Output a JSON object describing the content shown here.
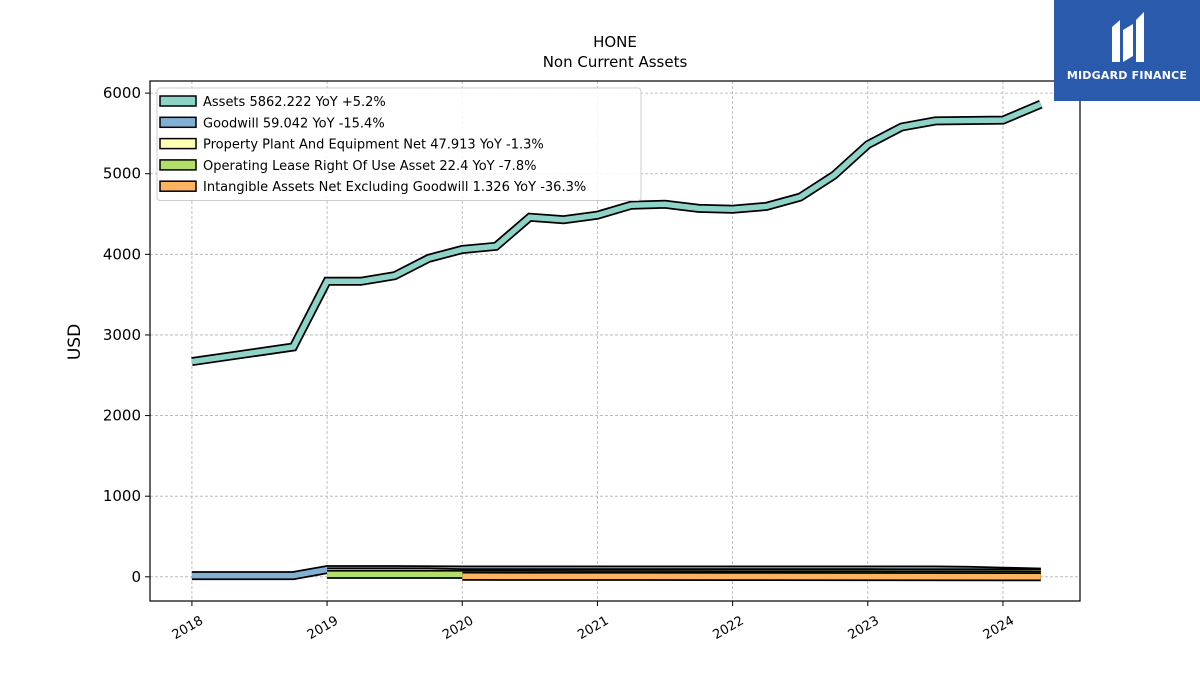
{
  "logo": {
    "text": "MIDGARD FINANCE",
    "bg_color": "#2a5aab"
  },
  "chart_data": {
    "type": "area",
    "title": "HONE",
    "subtitle": "Non Current  Assets",
    "ylabel": "USD",
    "xlabel": "",
    "ylim": [
      -300,
      6150
    ],
    "xlim": [
      2017.69,
      2024.57
    ],
    "yticks": [
      0,
      1000,
      2000,
      3000,
      4000,
      5000,
      6000
    ],
    "xticks": [
      "2018",
      "2019",
      "2020",
      "2021",
      "2022",
      "2023",
      "2024"
    ],
    "grid": true,
    "legend_position": "top-left",
    "series": [
      {
        "name": "Assets",
        "legend": "Assets  5862.222 YoY +5.2%",
        "color": "#8dd3c7",
        "x": [
          2018.0,
          2018.75,
          2019.0,
          2019.25,
          2019.5,
          2019.75,
          2020.0,
          2020.25,
          2020.5,
          2020.75,
          2021.0,
          2021.25,
          2021.5,
          2021.75,
          2022.0,
          2022.25,
          2022.5,
          2022.75,
          2023.0,
          2023.25,
          2023.5,
          2023.75,
          2024.0,
          2024.28
        ],
        "values": [
          2670,
          2850,
          3665,
          3665,
          3735,
          3950,
          4060,
          4100,
          4460,
          4430,
          4485,
          4610,
          4620,
          4570,
          4560,
          4595,
          4710,
          4980,
          5360,
          5580,
          5655,
          5660,
          5665,
          5862
        ]
      },
      {
        "name": "Goodwill",
        "legend": "Goodwill  59.042 YoY -15.4%",
        "color": "#80b1d3",
        "x": [
          2018.0,
          2018.75,
          2019.0,
          2019.5,
          2020.0,
          2020.5,
          2021.0,
          2021.5,
          2022.0,
          2022.5,
          2023.0,
          2023.5,
          2023.75,
          2024.0,
          2024.28
        ],
        "values": [
          15,
          15,
          90,
          90,
          85,
          85,
          85,
          85,
          85,
          85,
          85,
          85,
          80,
          70,
          59
        ]
      },
      {
        "name": "Property Plant And Equipment Net",
        "legend": "Property Plant And Equipment Net  47.913 YoY -1.3%",
        "color": "#ffffb3",
        "x": [
          2019.0,
          2019.75,
          2020.0,
          2021.0,
          2022.0,
          2023.0,
          2024.0,
          2024.28
        ],
        "values": [
          60,
          60,
          50,
          50,
          50,
          50,
          49,
          48
        ]
      },
      {
        "name": "Operating Lease Right Of Use Asset",
        "legend": "Operating Lease Right Of Use Asset  22.4 YoY -7.8%",
        "color": "#b3de69",
        "x": [
          2019.0,
          2020.0,
          2021.0,
          2022.0,
          2023.0,
          2024.0,
          2024.28
        ],
        "values": [
          30,
          30,
          27,
          26,
          25,
          24,
          22.4
        ]
      },
      {
        "name": "Intangible Assets Net Excluding Goodwill",
        "legend": "Intangible Assets Net Excluding Goodwill  1.326 YoY -36.3%",
        "color": "#fdb462",
        "x": [
          2020.0,
          2021.0,
          2022.0,
          2023.0,
          2024.0,
          2024.28
        ],
        "values": [
          6,
          5,
          4,
          3,
          2,
          1.326
        ]
      }
    ]
  }
}
